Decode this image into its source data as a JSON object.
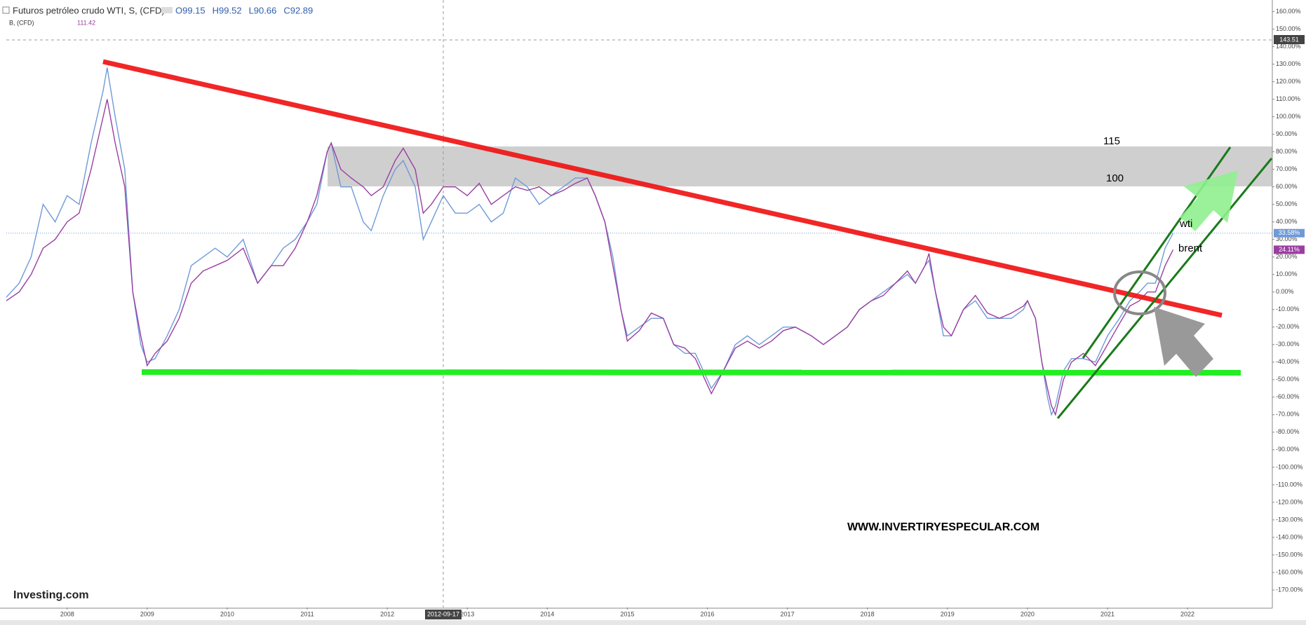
{
  "chart_data": {
    "type": "line",
    "header": {
      "ohlc": [
        "O99.15",
        "H99.52",
        "L90.66",
        "C92.89"
      ],
      "secondary_value": "111.42"
    },
    "x": [
      2007.24,
      2007.4,
      2007.55,
      2007.7,
      2007.85,
      2008.0,
      2008.15,
      2008.3,
      2008.45,
      2008.5,
      2008.6,
      2008.72,
      2008.82,
      2008.92,
      2009.0,
      2009.1,
      2009.25,
      2009.4,
      2009.55,
      2009.7,
      2009.85,
      2010.0,
      2010.2,
      2010.38,
      2010.55,
      2010.7,
      2010.85,
      2011.0,
      2011.12,
      2011.25,
      2011.3,
      2011.42,
      2011.55,
      2011.7,
      2011.8,
      2011.95,
      2012.1,
      2012.2,
      2012.35,
      2012.45,
      2012.55,
      2012.7,
      2012.85,
      2013.0,
      2013.15,
      2013.3,
      2013.45,
      2013.6,
      2013.75,
      2013.9,
      2014.05,
      2014.2,
      2014.35,
      2014.5,
      2014.6,
      2014.72,
      2014.82,
      2014.92,
      2015.0,
      2015.15,
      2015.3,
      2015.45,
      2015.58,
      2015.72,
      2015.85,
      2015.95,
      2016.05,
      2016.2,
      2016.35,
      2016.5,
      2016.65,
      2016.8,
      2016.95,
      2017.1,
      2017.3,
      2017.45,
      2017.6,
      2017.75,
      2017.9,
      2018.05,
      2018.2,
      2018.35,
      2018.5,
      2018.6,
      2018.72,
      2018.77,
      2018.85,
      2018.95,
      2019.05,
      2019.2,
      2019.35,
      2019.5,
      2019.65,
      2019.8,
      2019.95,
      2020.0,
      2020.1,
      2020.18,
      2020.25,
      2020.3,
      2020.35,
      2020.45,
      2020.55,
      2020.7,
      2020.85,
      2021.0,
      2021.15,
      2021.28,
      2021.4,
      2021.5,
      2021.6,
      2021.72,
      2021.82
    ],
    "series": [
      {
        "name": "Futuros petróleo crudo WTI, S, (CFD)",
        "color": "#6f9ad8",
        "last_label": "33.58%",
        "values": [
          -3,
          5,
          20,
          50,
          40,
          55,
          50,
          85,
          115,
          128,
          100,
          70,
          0,
          -30,
          -40,
          -38,
          -25,
          -10,
          15,
          20,
          25,
          20,
          30,
          5,
          15,
          25,
          30,
          40,
          50,
          80,
          85,
          60,
          60,
          40,
          35,
          55,
          70,
          75,
          60,
          30,
          40,
          55,
          45,
          45,
          50,
          40,
          45,
          65,
          60,
          50,
          55,
          60,
          65,
          65,
          55,
          40,
          20,
          -10,
          -25,
          -20,
          -15,
          -15,
          -30,
          -35,
          -35,
          -45,
          -55,
          -45,
          -30,
          -25,
          -30,
          -25,
          -20,
          -20,
          -25,
          -30,
          -25,
          -20,
          -10,
          -5,
          0,
          5,
          10,
          5,
          15,
          18,
          0,
          -25,
          -25,
          -10,
          -5,
          -15,
          -15,
          -15,
          -10,
          -5,
          -15,
          -40,
          -60,
          -70,
          -65,
          -45,
          -38,
          -38,
          -40,
          -25,
          -15,
          -5,
          0,
          5,
          5,
          25,
          33.58
        ]
      },
      {
        "name": "B, (CFD)",
        "color": "#9a3fa0",
        "last_label": "24.11%",
        "values": [
          -5,
          0,
          10,
          25,
          30,
          40,
          45,
          70,
          100,
          110,
          85,
          60,
          0,
          -25,
          -42,
          -35,
          -28,
          -15,
          5,
          12,
          15,
          18,
          25,
          5,
          15,
          15,
          25,
          40,
          55,
          80,
          85,
          70,
          65,
          60,
          55,
          60,
          75,
          82,
          70,
          45,
          50,
          60,
          60,
          55,
          62,
          50,
          55,
          60,
          58,
          60,
          55,
          58,
          62,
          65,
          55,
          40,
          15,
          -10,
          -28,
          -22,
          -12,
          -15,
          -30,
          -32,
          -38,
          -48,
          -58,
          -45,
          -32,
          -28,
          -32,
          -28,
          -22,
          -20,
          -25,
          -30,
          -25,
          -20,
          -10,
          -5,
          -2,
          5,
          12,
          5,
          15,
          22,
          0,
          -20,
          -25,
          -10,
          -2,
          -12,
          -15,
          -12,
          -8,
          -5,
          -15,
          -40,
          -55,
          -65,
          -70,
          -50,
          -40,
          -35,
          -42,
          -30,
          -18,
          -8,
          -5,
          0,
          0,
          15,
          24.11
        ]
      }
    ],
    "xlim": [
      2007.24,
      2023.06
    ],
    "xticks": [
      2008,
      2009,
      2010,
      2011,
      2012,
      2013,
      2014,
      2015,
      2016,
      2017,
      2018,
      2019,
      2020,
      2021,
      2022
    ],
    "ylim": [
      -180,
      166.6
    ],
    "yticks": [
      {
        "value": 160,
        "label": "160.00%"
      },
      {
        "value": 150,
        "label": "150.00%"
      },
      {
        "value": 140,
        "label": "140.00%"
      },
      {
        "value": 130,
        "label": "130.00%"
      },
      {
        "value": 120,
        "label": "120.00%"
      },
      {
        "value": 110,
        "label": "110.00%"
      },
      {
        "value": 100,
        "label": "100.00%"
      },
      {
        "value": 90,
        "label": "90.00%"
      },
      {
        "value": 80,
        "label": "80.00%"
      },
      {
        "value": 70,
        "label": "70.00%"
      },
      {
        "value": 60,
        "label": "60.00%"
      },
      {
        "value": 50,
        "label": "50.00%"
      },
      {
        "value": 40,
        "label": "40.00%"
      },
      {
        "value": 30,
        "label": "30.00%"
      },
      {
        "value": 20,
        "label": "20.00%"
      },
      {
        "value": 10,
        "label": "10.00%"
      },
      {
        "value": 0,
        "label": "0.00%"
      },
      {
        "value": -10,
        "label": "-10.00%"
      },
      {
        "value": -20,
        "label": "-20.00%"
      },
      {
        "value": -30,
        "label": "-30.00%"
      },
      {
        "value": -40,
        "label": "-40.00%"
      },
      {
        "value": -50,
        "label": "-50.00%"
      },
      {
        "value": -60,
        "label": "-60.00%"
      },
      {
        "value": -70,
        "label": "-70.00%"
      },
      {
        "value": -80,
        "label": "-80.00%"
      },
      {
        "value": -90,
        "label": "-90.00%"
      },
      {
        "value": -100,
        "label": "-100.00%"
      },
      {
        "value": -110,
        "label": "-110.00%"
      },
      {
        "value": -120,
        "label": "-120.00%"
      },
      {
        "value": -130,
        "label": "-130.00%"
      },
      {
        "value": -140,
        "label": "-140.00%"
      },
      {
        "value": -150,
        "label": "-150.00%"
      },
      {
        "value": -160,
        "label": "-160.00%"
      },
      {
        "value": -170,
        "label": "-170.00%"
      }
    ],
    "crosshair": {
      "x_label": "2012-09-17",
      "y_label": "143.51"
    },
    "annotations": {
      "level_high": "115",
      "level_low": "100",
      "wti": "wti",
      "brent": "brent",
      "website": "WWW.INVERTIRYESPECULAR.COM",
      "logo": "Investing.com"
    }
  }
}
